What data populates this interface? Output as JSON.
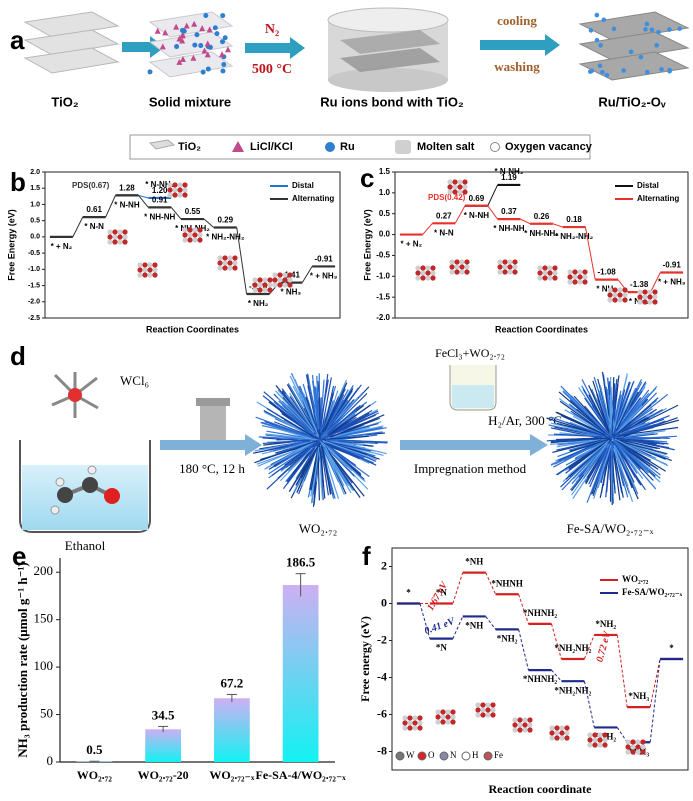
{
  "panel_a": {
    "label": "a",
    "captions": [
      "TiO₂",
      "Solid mixture",
      "Ru ions bond with TiO₂",
      "Ru/TiO₂-Oᵥ"
    ],
    "step1": [
      "N₂",
      "500 °C"
    ],
    "step2": [
      "cooling",
      "washing"
    ],
    "legend": [
      "TiO₂",
      "LiCl/KCl",
      "Ru",
      "Molten salt",
      "Oxygen vacancy"
    ]
  },
  "panel_d": {
    "label": "d",
    "reagent": "WCl₆",
    "solvent": "Ethanol",
    "step1": "180 °C, 12 h",
    "product1": "WO₂.₇₂",
    "beaker": "FeCl₃+WO₂.₇₂",
    "step2": "Impregnation method",
    "step3": "H₂/Ar, 300 °C",
    "product2": "Fe-SA/WO₂.₇₂₋ₓ"
  },
  "chart_data": [
    {
      "type": "energy-diagram",
      "label": "b",
      "ylabel": "Free Energy (eV)",
      "xlabel": "Reaction Coordinates",
      "ylim": [
        -2.5,
        2.0
      ],
      "yticks": [
        {
          "value": 2,
          "label": "2.0"
        },
        1.5,
        {
          "value": 1,
          "label": "1.0"
        },
        0.5,
        {
          "value": 0,
          "label": "0.0"
        },
        -0.5,
        {
          "value": -1,
          "label": "-1.0"
        },
        -1.5,
        {
          "value": -2,
          "label": "-2.0"
        },
        -2.5
      ],
      "series": [
        {
          "name": "Distal",
          "color": "#1f77d4",
          "values": [
            null,
            null,
            1.28,
            1.2,
            null,
            null,
            null,
            null,
            null
          ],
          "value_labels": [
            null,
            null,
            null,
            "1.20",
            null,
            null,
            null,
            null,
            null
          ],
          "state_labels": [
            null,
            null,
            null,
            "* N-NH₂",
            null,
            null,
            null,
            null,
            null
          ]
        },
        {
          "name": "Alternating",
          "color": "#333333",
          "values": [
            0,
            0.61,
            1.28,
            0.91,
            0.55,
            0.29,
            -1.76,
            -1.41,
            -0.91
          ],
          "value_labels": [
            null,
            "0.61",
            "1.28",
            "0.91",
            "0.55",
            "0.29",
            "-1.76",
            "-1.41",
            "-0.91"
          ],
          "state_labels": [
            "* + N₂",
            "* N-N",
            "* N-NH",
            "* NH-NH",
            "* NH-NH₂",
            "* NH₂-NH₂",
            "* NH₂",
            "* NH₃",
            "* + NH₃"
          ]
        }
      ],
      "annotations": [
        "PDS(0.67)"
      ]
    },
    {
      "type": "energy-diagram",
      "label": "c",
      "ylabel": "Free Energy (eV)",
      "xlabel": "Reaction Coordinates",
      "ylim": [
        -2.0,
        1.5
      ],
      "yticks": [
        1.5,
        {
          "value": 1,
          "label": "1.0"
        },
        0.5,
        {
          "value": 0,
          "label": "0.0"
        },
        -0.5,
        {
          "value": -1,
          "label": "-1.0"
        },
        -1.5,
        {
          "value": -2,
          "label": "-2.0"
        }
      ],
      "series": [
        {
          "name": "Distal",
          "color": "#111111",
          "values": [
            null,
            null,
            0.69,
            1.19,
            null,
            null,
            null,
            null,
            null
          ],
          "value_labels": [
            null,
            null,
            null,
            "1.19",
            null,
            null,
            null,
            null,
            null
          ],
          "state_labels": [
            null,
            null,
            null,
            "* N-NH₂",
            null,
            null,
            null,
            null,
            null
          ]
        },
        {
          "name": "Alternating",
          "color": "#e8322c",
          "values": [
            0,
            0.27,
            0.69,
            0.37,
            0.26,
            0.18,
            -1.08,
            -1.38,
            -0.91
          ],
          "value_labels": [
            null,
            "0.27",
            "0.69",
            "0.37",
            "0.26",
            "0.18",
            "-1.08",
            "-1.38",
            "-0.91"
          ],
          "state_labels": [
            "* + N₂",
            "* N-N",
            "* N-NH",
            "* NH-NH",
            "* NH-NH₂",
            "* NH₂-NH₂",
            "* NH₂",
            "* NH₃",
            "* + NH₃"
          ]
        }
      ],
      "annotations": [
        "PDS(0.42)"
      ]
    },
    {
      "type": "bar",
      "label": "e",
      "ylabel": "NH₃ production rate (μmol g⁻¹ h⁻¹)",
      "categories": [
        "WO₂.₇₂",
        "WO₂.₇₂-20",
        "WO₂.₇₂₋ₓ",
        "Fe-SA-4/WO₂.₇₂₋ₓ"
      ],
      "values": [
        0.5,
        34.5,
        67.2,
        186.5
      ],
      "errors": [
        0.3,
        3,
        4,
        12
      ],
      "ylim": [
        0,
        215
      ],
      "yticks": [
        0,
        50,
        100,
        150,
        200
      ]
    },
    {
      "type": "energy-diagram",
      "label": "f",
      "ylabel": "Free energy (eV)",
      "xlabel": "Reaction coordinate",
      "ylim": [
        -9,
        3
      ],
      "yticks": [
        2,
        0,
        -2,
        -4,
        -6,
        -8
      ],
      "series": [
        {
          "name": "WO₂.₇₂",
          "color": "#d42020",
          "values": [
            0,
            0,
            1.67,
            0.5,
            -1.1,
            -3.0,
            -1.7,
            -5.6,
            -3.0
          ],
          "state_labels": [
            "*",
            "*N",
            "*NH",
            "*NHNH",
            "*NHNH₂",
            "*NH₂NH₂",
            "*NH₂",
            "*NH₃",
            "*"
          ]
        },
        {
          "name": "Fe-SA/WO₂.₇₂₋ₓ",
          "color": "#1f2a8a",
          "values": [
            0,
            -1.9,
            -0.7,
            -1.4,
            -3.6,
            -4.2,
            -6.7,
            -7.5,
            -3.0
          ],
          "state_labels": [
            null,
            "*N",
            "*NH",
            "*NH₂",
            "*NHNH₂",
            "*NH₂NH₂",
            "*NH₂",
            "*NH₃",
            null
          ]
        }
      ],
      "annotations": [
        "1.67 eV",
        "0.41 eV",
        "0.72 eV"
      ],
      "atom_legend": [
        "W",
        "O",
        "N",
        "H",
        "Fe"
      ]
    }
  ]
}
